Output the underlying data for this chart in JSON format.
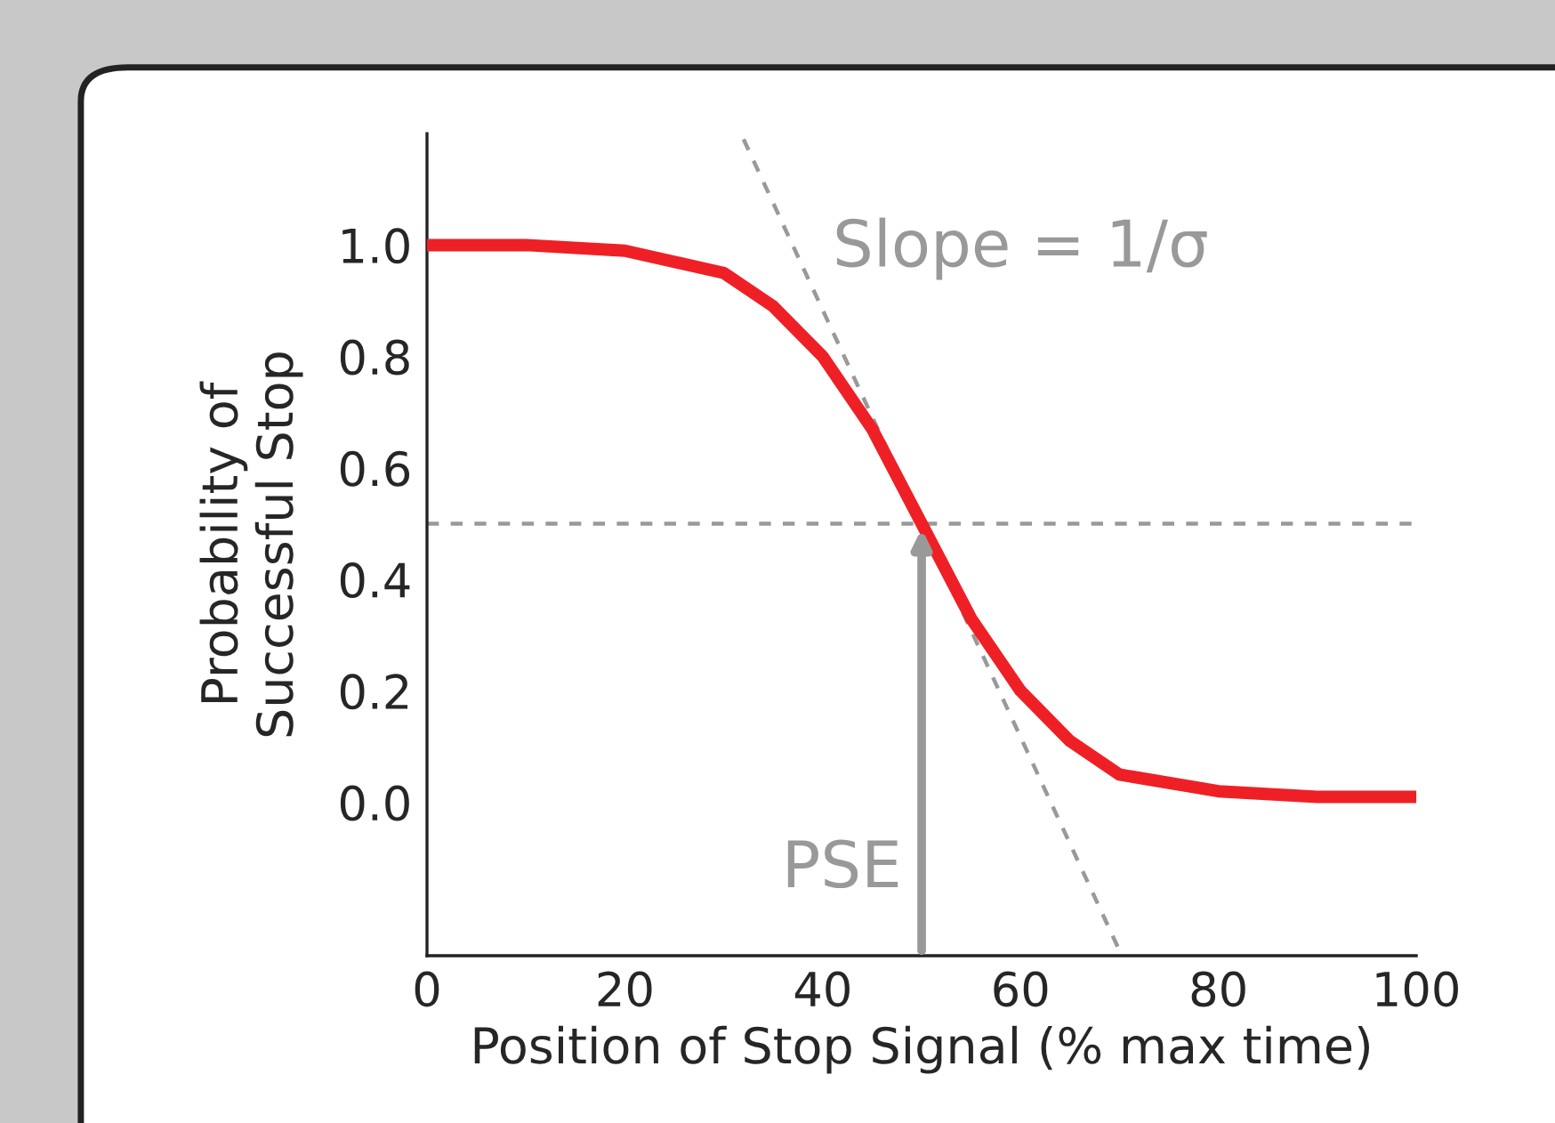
{
  "chart_data": {
    "type": "line",
    "xlabel": "Position of Stop Signal (% max time)",
    "ylabel": "Probability of\nSuccessful Stop",
    "xlim": [
      0,
      100
    ],
    "ylim": [
      -0.275,
      1.2
    ],
    "xticks": [
      0,
      20,
      40,
      60,
      80,
      100
    ],
    "yticks": [
      {
        "value": 0,
        "label": "0.0"
      },
      0.2,
      0.4,
      0.6,
      0.8,
      {
        "value": 1,
        "label": "1.0"
      }
    ],
    "grid": false,
    "legend": false,
    "marker": "none",
    "series": [
      {
        "color": "#ee2026",
        "line_style": "solid",
        "x": [
          0,
          10,
          20,
          30,
          35,
          40,
          45,
          50,
          55,
          60,
          65,
          70,
          80,
          90,
          100
        ],
        "values": [
          1.0,
          1.0,
          0.99,
          0.95,
          0.89,
          0.8,
          0.67,
          0.5,
          0.33,
          0.2,
          0.11,
          0.05,
          0.02,
          0.01,
          0.01
        ]
      },
      {
        "color": "#999999",
        "line_style": "dashed",
        "x": [
          32,
          70
        ],
        "values": [
          1.19,
          -0.266
        ]
      }
    ],
    "ref_lines": [
      {
        "axis": "y",
        "value": 0.5,
        "color": "#999999",
        "line_style": "dashed"
      }
    ],
    "annotations": [
      "Slope = 1/σ",
      {
        "text": "PSE",
        "x": 50,
        "y": 0.5
      }
    ]
  }
}
